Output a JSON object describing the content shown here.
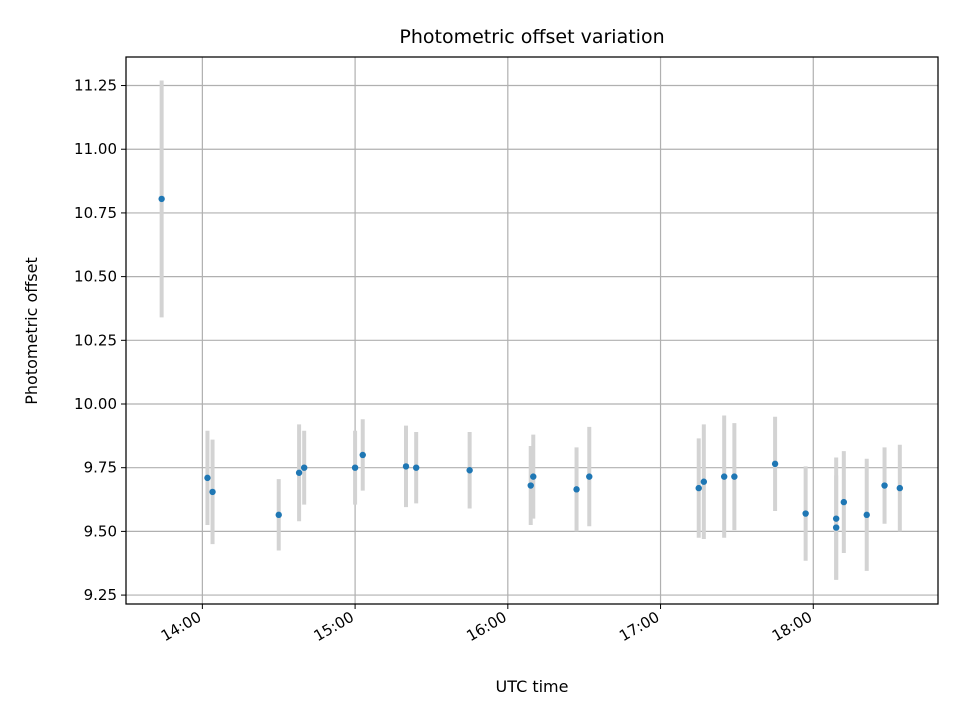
{
  "chart_data": {
    "type": "scatter",
    "title": "Photometric offset variation",
    "xlabel": "UTC time",
    "ylabel": "Photometric offset",
    "x_ticks": [
      "14:00",
      "15:00",
      "16:00",
      "17:00",
      "18:00"
    ],
    "x_tick_values": [
      "14:00",
      "15:00",
      "16:00",
      "17:00",
      "18:00"
    ],
    "y_ticks": [
      "9.25",
      "9.50",
      "9.75",
      "10.00",
      "10.25",
      "10.50",
      "10.75",
      "11.00",
      "11.25"
    ],
    "y_tick_values": [
      9.25,
      9.5,
      9.75,
      10.0,
      10.25,
      10.5,
      10.75,
      11.0,
      11.25
    ],
    "xlim": [
      "13:30",
      "18:49"
    ],
    "ylim": [
      9.215,
      11.362
    ],
    "grid": true,
    "point_color": "#1f77b4",
    "errorbar_color": "#d3d3d3",
    "series": [
      {
        "points": [
          {
            "time": "13:44",
            "y": 10.805,
            "err": 0.465
          },
          {
            "time": "14:02",
            "y": 9.71,
            "err": 0.185
          },
          {
            "time": "14:04",
            "y": 9.655,
            "err": 0.205
          },
          {
            "time": "14:30",
            "y": 9.565,
            "err": 0.14
          },
          {
            "time": "14:38",
            "y": 9.73,
            "err": 0.19
          },
          {
            "time": "14:40",
            "y": 9.75,
            "err": 0.145
          },
          {
            "time": "15:00",
            "y": 9.75,
            "err": 0.145
          },
          {
            "time": "15:03",
            "y": 9.8,
            "err": 0.14
          },
          {
            "time": "15:20",
            "y": 9.755,
            "err": 0.16
          },
          {
            "time": "15:24",
            "y": 9.75,
            "err": 0.14
          },
          {
            "time": "15:45",
            "y": 9.74,
            "err": 0.15
          },
          {
            "time": "16:09",
            "y": 9.68,
            "err": 0.155
          },
          {
            "time": "16:10",
            "y": 9.715,
            "err": 0.165
          },
          {
            "time": "16:27",
            "y": 9.665,
            "err": 0.165
          },
          {
            "time": "16:32",
            "y": 9.715,
            "err": 0.195
          },
          {
            "time": "17:15",
            "y": 9.67,
            "err": 0.195
          },
          {
            "time": "17:17",
            "y": 9.695,
            "err": 0.225
          },
          {
            "time": "17:25",
            "y": 9.715,
            "err": 0.24
          },
          {
            "time": "17:29",
            "y": 9.715,
            "err": 0.21
          },
          {
            "time": "17:45",
            "y": 9.765,
            "err": 0.185
          },
          {
            "time": "17:57",
            "y": 9.57,
            "err": 0.185
          },
          {
            "time": "18:09",
            "y": 9.515,
            "err": 0.205
          },
          {
            "time": "18:09",
            "y": 9.55,
            "err": 0.24
          },
          {
            "time": "18:12",
            "y": 9.615,
            "err": 0.2
          },
          {
            "time": "18:21",
            "y": 9.565,
            "err": 0.22
          },
          {
            "time": "18:28",
            "y": 9.68,
            "err": 0.15
          },
          {
            "time": "18:34",
            "y": 9.67,
            "err": 0.17
          }
        ]
      }
    ]
  }
}
